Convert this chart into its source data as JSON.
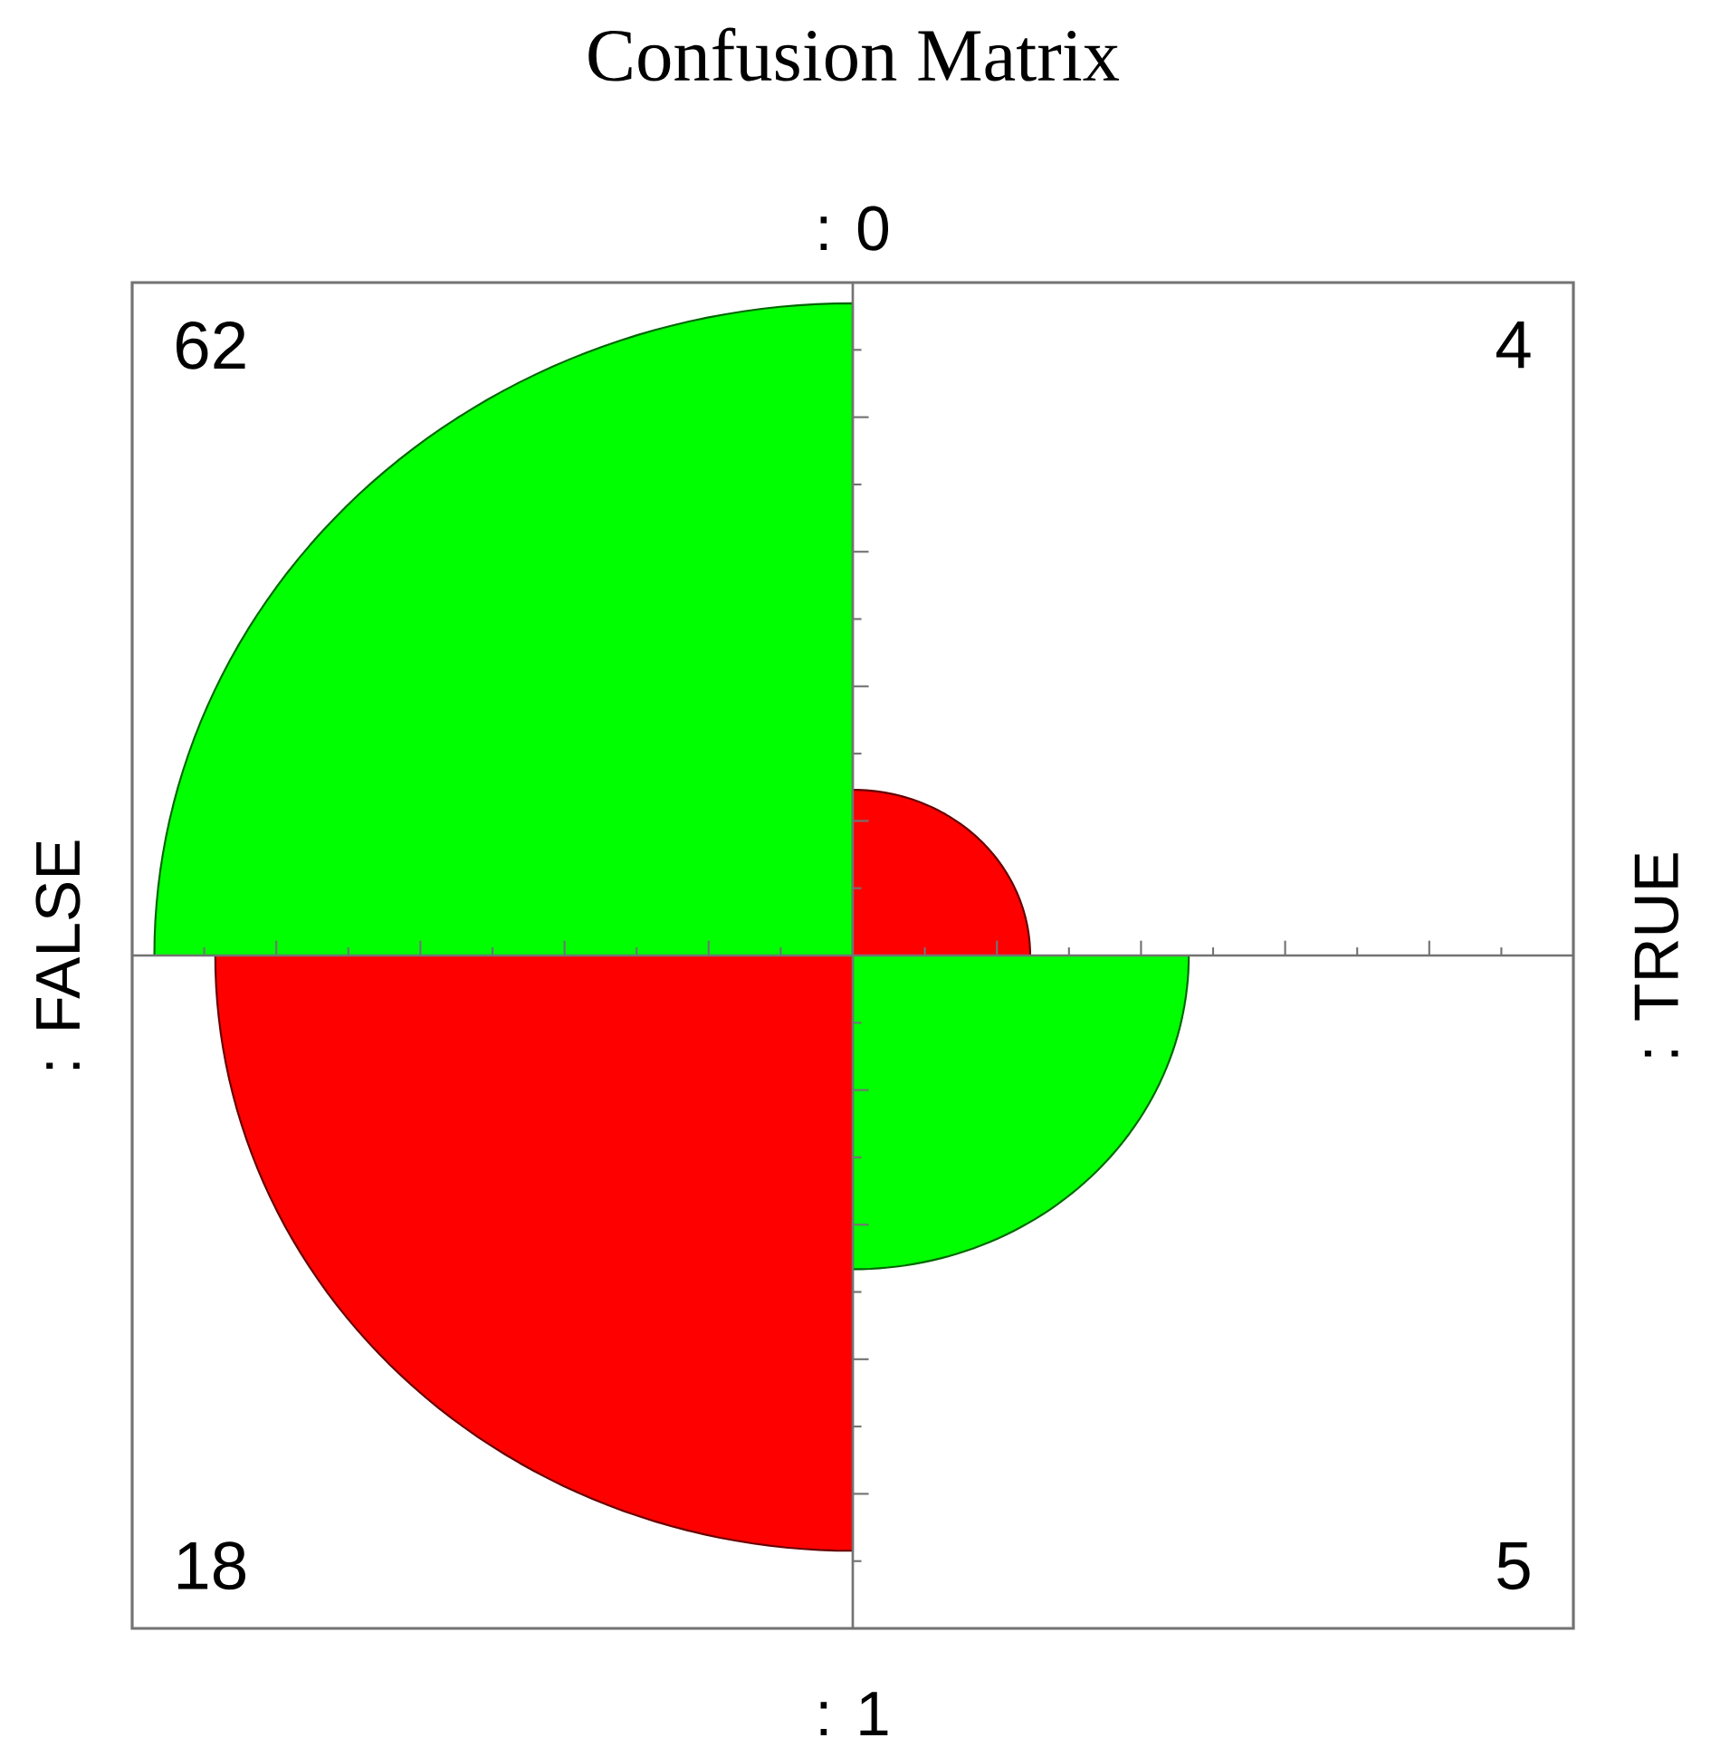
{
  "chart_data": {
    "type": "other",
    "title": "Confusion Matrix",
    "annotations": [
      ": 0",
      ": 1",
      ": FALSE",
      ": TRUE"
    ],
    "values": [
      62,
      4,
      18,
      5
    ],
    "data_labels": true,
    "colors": [
      "#00ff00",
      "#ff0000",
      "#ff0000",
      "#00ff00"
    ]
  }
}
